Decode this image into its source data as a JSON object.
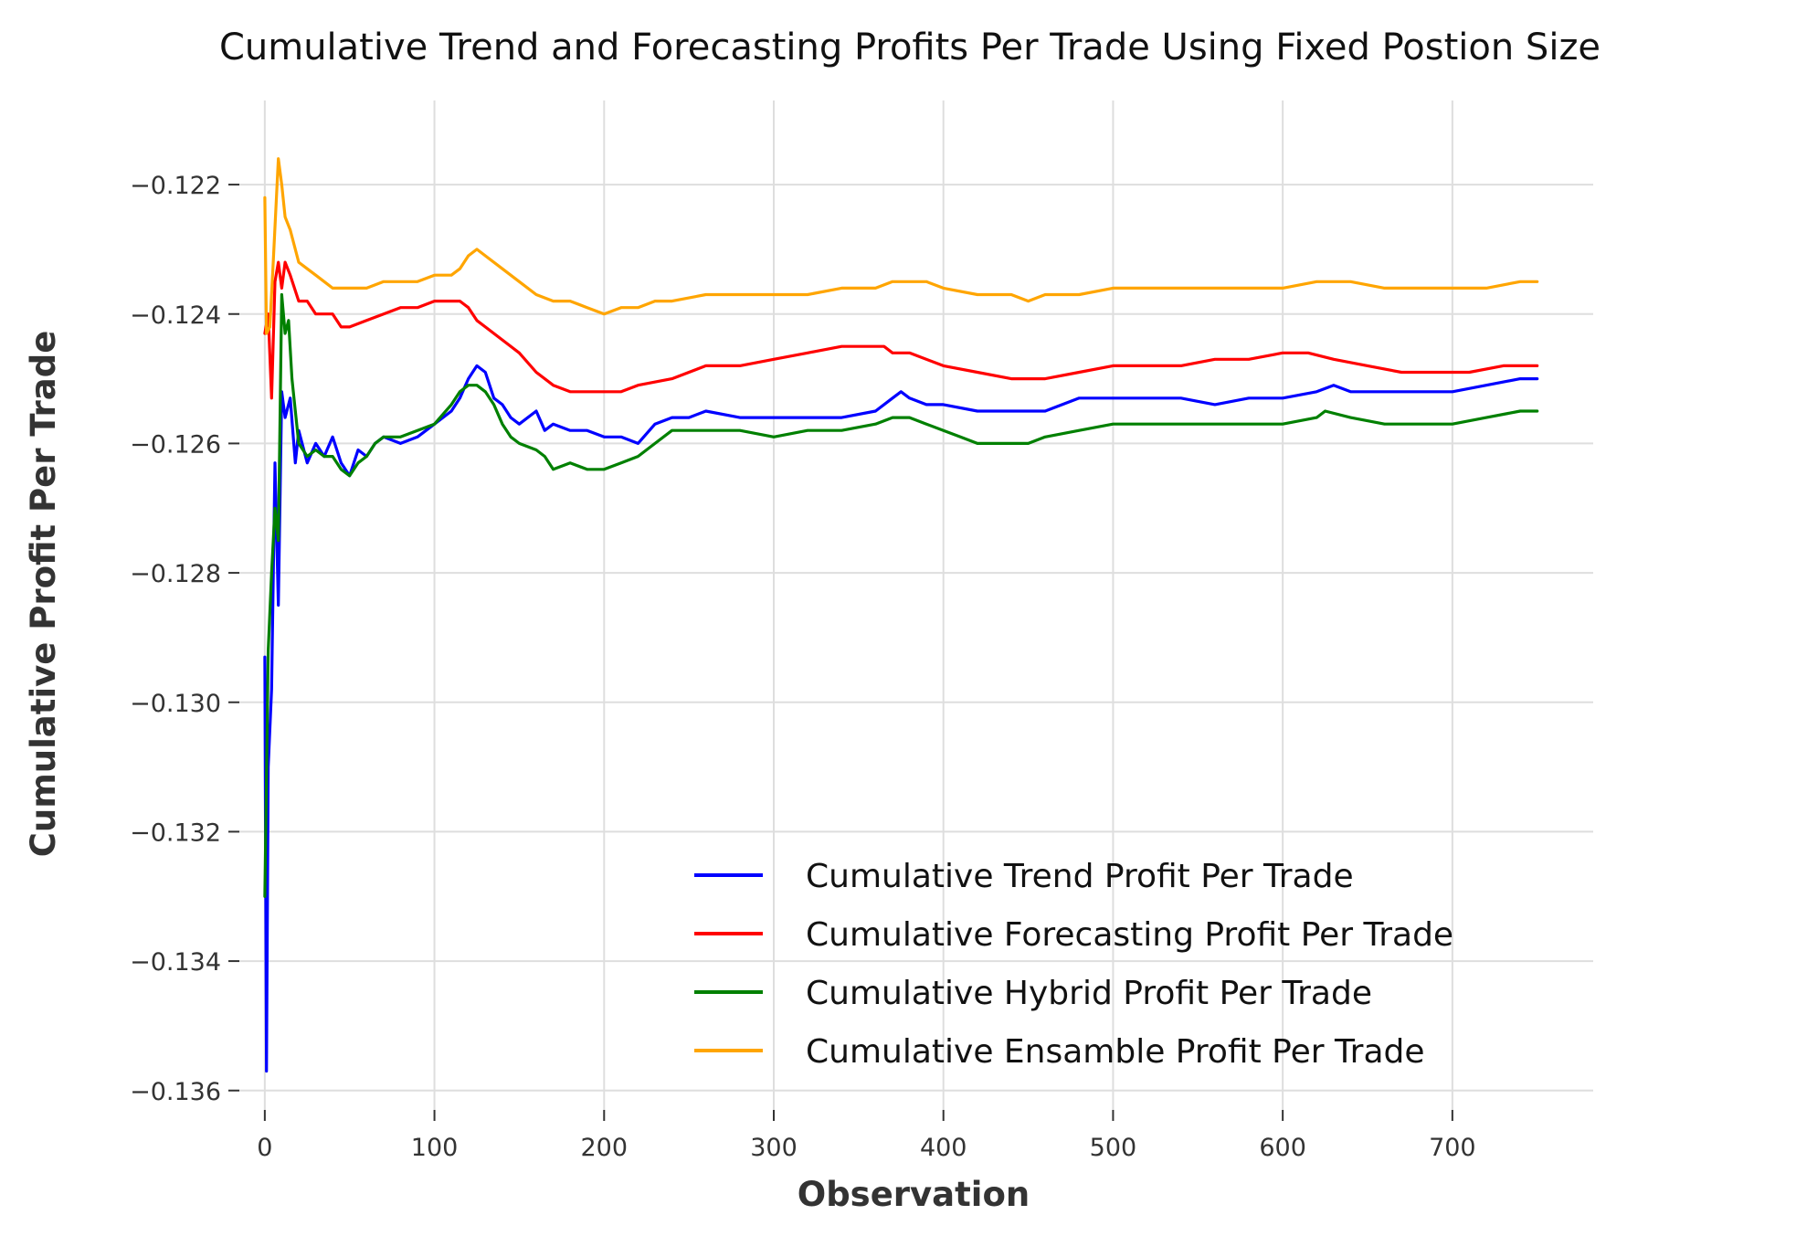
{
  "chart_data": {
    "type": "line",
    "title": "Cumulative Trend and Forecasting Profits Per Trade Using Fixed Postion Size",
    "xlabel": "Observation",
    "ylabel": "Cumulative Profit Per Trade",
    "xlim": [
      -15,
      783
    ],
    "ylim": [
      -0.1363,
      -0.1207
    ],
    "x_ticks": [
      0,
      100,
      200,
      300,
      400,
      500,
      600,
      700
    ],
    "x_tick_labels": [
      "0",
      "100",
      "200",
      "300",
      "400",
      "500",
      "600",
      "700"
    ],
    "y_ticks": [
      -0.122,
      -0.124,
      -0.126,
      -0.128,
      -0.13,
      -0.132,
      -0.134,
      -0.136
    ],
    "y_tick_labels": [
      "−0.122",
      "−0.124",
      "−0.126",
      "−0.128",
      "−0.130",
      "−0.132",
      "−0.134",
      "−0.136"
    ],
    "grid": true,
    "legend_position": "bottom-right",
    "series": [
      {
        "name": "Cumulative Trend Profit Per Trade",
        "color": "#0000ff",
        "points": [
          [
            0,
            -0.1293
          ],
          [
            1,
            -0.1357
          ],
          [
            2,
            -0.131
          ],
          [
            4,
            -0.1298
          ],
          [
            6,
            -0.1263
          ],
          [
            8,
            -0.1285
          ],
          [
            10,
            -0.1252
          ],
          [
            12,
            -0.1256
          ],
          [
            15,
            -0.1253
          ],
          [
            18,
            -0.1263
          ],
          [
            20,
            -0.1258
          ],
          [
            25,
            -0.1263
          ],
          [
            30,
            -0.126
          ],
          [
            35,
            -0.1262
          ],
          [
            40,
            -0.1259
          ],
          [
            45,
            -0.1263
          ],
          [
            50,
            -0.1265
          ],
          [
            55,
            -0.1261
          ],
          [
            60,
            -0.1262
          ],
          [
            65,
            -0.126
          ],
          [
            70,
            -0.1259
          ],
          [
            80,
            -0.126
          ],
          [
            90,
            -0.1259
          ],
          [
            100,
            -0.1257
          ],
          [
            110,
            -0.1255
          ],
          [
            115,
            -0.1253
          ],
          [
            120,
            -0.125
          ],
          [
            125,
            -0.1248
          ],
          [
            130,
            -0.1249
          ],
          [
            135,
            -0.1253
          ],
          [
            140,
            -0.1254
          ],
          [
            145,
            -0.1256
          ],
          [
            150,
            -0.1257
          ],
          [
            160,
            -0.1255
          ],
          [
            165,
            -0.1258
          ],
          [
            170,
            -0.1257
          ],
          [
            180,
            -0.1258
          ],
          [
            190,
            -0.1258
          ],
          [
            200,
            -0.1259
          ],
          [
            210,
            -0.1259
          ],
          [
            220,
            -0.126
          ],
          [
            230,
            -0.1257
          ],
          [
            240,
            -0.1256
          ],
          [
            250,
            -0.1256
          ],
          [
            260,
            -0.1255
          ],
          [
            280,
            -0.1256
          ],
          [
            300,
            -0.1256
          ],
          [
            320,
            -0.1256
          ],
          [
            340,
            -0.1256
          ],
          [
            360,
            -0.1255
          ],
          [
            370,
            -0.1253
          ],
          [
            375,
            -0.1252
          ],
          [
            380,
            -0.1253
          ],
          [
            390,
            -0.1254
          ],
          [
            400,
            -0.1254
          ],
          [
            420,
            -0.1255
          ],
          [
            440,
            -0.1255
          ],
          [
            460,
            -0.1255
          ],
          [
            480,
            -0.1253
          ],
          [
            500,
            -0.1253
          ],
          [
            520,
            -0.1253
          ],
          [
            540,
            -0.1253
          ],
          [
            560,
            -0.1254
          ],
          [
            580,
            -0.1253
          ],
          [
            600,
            -0.1253
          ],
          [
            620,
            -0.1252
          ],
          [
            630,
            -0.1251
          ],
          [
            640,
            -0.1252
          ],
          [
            660,
            -0.1252
          ],
          [
            680,
            -0.1252
          ],
          [
            700,
            -0.1252
          ],
          [
            720,
            -0.1251
          ],
          [
            740,
            -0.125
          ],
          [
            750,
            -0.125
          ]
        ]
      },
      {
        "name": "Cumulative Forecasting Profit Per Trade",
        "color": "#ff0000",
        "points": [
          [
            0,
            -0.1243
          ],
          [
            2,
            -0.124
          ],
          [
            4,
            -0.1253
          ],
          [
            6,
            -0.1235
          ],
          [
            8,
            -0.1232
          ],
          [
            10,
            -0.1236
          ],
          [
            12,
            -0.1232
          ],
          [
            15,
            -0.1234
          ],
          [
            20,
            -0.1238
          ],
          [
            25,
            -0.1238
          ],
          [
            30,
            -0.124
          ],
          [
            35,
            -0.124
          ],
          [
            40,
            -0.124
          ],
          [
            45,
            -0.1242
          ],
          [
            50,
            -0.1242
          ],
          [
            60,
            -0.1241
          ],
          [
            70,
            -0.124
          ],
          [
            80,
            -0.1239
          ],
          [
            90,
            -0.1239
          ],
          [
            100,
            -0.1238
          ],
          [
            110,
            -0.1238
          ],
          [
            115,
            -0.1238
          ],
          [
            120,
            -0.1239
          ],
          [
            125,
            -0.1241
          ],
          [
            130,
            -0.1242
          ],
          [
            140,
            -0.1244
          ],
          [
            150,
            -0.1246
          ],
          [
            160,
            -0.1249
          ],
          [
            170,
            -0.1251
          ],
          [
            180,
            -0.1252
          ],
          [
            190,
            -0.1252
          ],
          [
            200,
            -0.1252
          ],
          [
            210,
            -0.1252
          ],
          [
            220,
            -0.1251
          ],
          [
            240,
            -0.125
          ],
          [
            260,
            -0.1248
          ],
          [
            280,
            -0.1248
          ],
          [
            300,
            -0.1247
          ],
          [
            320,
            -0.1246
          ],
          [
            340,
            -0.1245
          ],
          [
            360,
            -0.1245
          ],
          [
            365,
            -0.1245
          ],
          [
            370,
            -0.1246
          ],
          [
            380,
            -0.1246
          ],
          [
            400,
            -0.1248
          ],
          [
            420,
            -0.1249
          ],
          [
            440,
            -0.125
          ],
          [
            460,
            -0.125
          ],
          [
            480,
            -0.1249
          ],
          [
            500,
            -0.1248
          ],
          [
            520,
            -0.1248
          ],
          [
            540,
            -0.1248
          ],
          [
            560,
            -0.1247
          ],
          [
            580,
            -0.1247
          ],
          [
            600,
            -0.1246
          ],
          [
            615,
            -0.1246
          ],
          [
            630,
            -0.1247
          ],
          [
            650,
            -0.1248
          ],
          [
            670,
            -0.1249
          ],
          [
            690,
            -0.1249
          ],
          [
            710,
            -0.1249
          ],
          [
            730,
            -0.1248
          ],
          [
            750,
            -0.1248
          ]
        ]
      },
      {
        "name": "Cumulative Hybrid Profit Per Trade",
        "color": "#008000",
        "points": [
          [
            0,
            -0.133
          ],
          [
            2,
            -0.1292
          ],
          [
            4,
            -0.128
          ],
          [
            6,
            -0.127
          ],
          [
            8,
            -0.1275
          ],
          [
            10,
            -0.1237
          ],
          [
            12,
            -0.1243
          ],
          [
            14,
            -0.1241
          ],
          [
            16,
            -0.125
          ],
          [
            18,
            -0.1255
          ],
          [
            20,
            -0.126
          ],
          [
            25,
            -0.1262
          ],
          [
            30,
            -0.1261
          ],
          [
            35,
            -0.1262
          ],
          [
            40,
            -0.1262
          ],
          [
            45,
            -0.1264
          ],
          [
            50,
            -0.1265
          ],
          [
            55,
            -0.1263
          ],
          [
            60,
            -0.1262
          ],
          [
            65,
            -0.126
          ],
          [
            70,
            -0.1259
          ],
          [
            80,
            -0.1259
          ],
          [
            90,
            -0.1258
          ],
          [
            100,
            -0.1257
          ],
          [
            110,
            -0.1254
          ],
          [
            115,
            -0.1252
          ],
          [
            120,
            -0.1251
          ],
          [
            125,
            -0.1251
          ],
          [
            130,
            -0.1252
          ],
          [
            135,
            -0.1254
          ],
          [
            140,
            -0.1257
          ],
          [
            145,
            -0.1259
          ],
          [
            150,
            -0.126
          ],
          [
            160,
            -0.1261
          ],
          [
            165,
            -0.1262
          ],
          [
            170,
            -0.1264
          ],
          [
            180,
            -0.1263
          ],
          [
            190,
            -0.1264
          ],
          [
            200,
            -0.1264
          ],
          [
            210,
            -0.1263
          ],
          [
            220,
            -0.1262
          ],
          [
            230,
            -0.126
          ],
          [
            240,
            -0.1258
          ],
          [
            250,
            -0.1258
          ],
          [
            260,
            -0.1258
          ],
          [
            280,
            -0.1258
          ],
          [
            300,
            -0.1259
          ],
          [
            320,
            -0.1258
          ],
          [
            340,
            -0.1258
          ],
          [
            360,
            -0.1257
          ],
          [
            370,
            -0.1256
          ],
          [
            380,
            -0.1256
          ],
          [
            390,
            -0.1257
          ],
          [
            400,
            -0.1258
          ],
          [
            410,
            -0.1259
          ],
          [
            420,
            -0.126
          ],
          [
            440,
            -0.126
          ],
          [
            450,
            -0.126
          ],
          [
            460,
            -0.1259
          ],
          [
            480,
            -0.1258
          ],
          [
            500,
            -0.1257
          ],
          [
            520,
            -0.1257
          ],
          [
            540,
            -0.1257
          ],
          [
            560,
            -0.1257
          ],
          [
            580,
            -0.1257
          ],
          [
            600,
            -0.1257
          ],
          [
            620,
            -0.1256
          ],
          [
            625,
            -0.1255
          ],
          [
            640,
            -0.1256
          ],
          [
            660,
            -0.1257
          ],
          [
            680,
            -0.1257
          ],
          [
            700,
            -0.1257
          ],
          [
            720,
            -0.1256
          ],
          [
            740,
            -0.1255
          ],
          [
            750,
            -0.1255
          ]
        ]
      },
      {
        "name": "Cumulative Ensamble Profit Per Trade",
        "color": "#ffa500",
        "points": [
          [
            0,
            -0.1222
          ],
          [
            1,
            -0.1243
          ],
          [
            3,
            -0.1242
          ],
          [
            5,
            -0.1232
          ],
          [
            8,
            -0.1216
          ],
          [
            10,
            -0.122
          ],
          [
            12,
            -0.1225
          ],
          [
            15,
            -0.1227
          ],
          [
            20,
            -0.1232
          ],
          [
            25,
            -0.1233
          ],
          [
            30,
            -0.1234
          ],
          [
            35,
            -0.1235
          ],
          [
            40,
            -0.1236
          ],
          [
            45,
            -0.1236
          ],
          [
            50,
            -0.1236
          ],
          [
            60,
            -0.1236
          ],
          [
            70,
            -0.1235
          ],
          [
            80,
            -0.1235
          ],
          [
            90,
            -0.1235
          ],
          [
            100,
            -0.1234
          ],
          [
            110,
            -0.1234
          ],
          [
            115,
            -0.1233
          ],
          [
            120,
            -0.1231
          ],
          [
            125,
            -0.123
          ],
          [
            130,
            -0.1231
          ],
          [
            140,
            -0.1233
          ],
          [
            150,
            -0.1235
          ],
          [
            160,
            -0.1237
          ],
          [
            170,
            -0.1238
          ],
          [
            180,
            -0.1238
          ],
          [
            190,
            -0.1239
          ],
          [
            200,
            -0.124
          ],
          [
            210,
            -0.1239
          ],
          [
            220,
            -0.1239
          ],
          [
            230,
            -0.1238
          ],
          [
            240,
            -0.1238
          ],
          [
            260,
            -0.1237
          ],
          [
            280,
            -0.1237
          ],
          [
            300,
            -0.1237
          ],
          [
            320,
            -0.1237
          ],
          [
            340,
            -0.1236
          ],
          [
            360,
            -0.1236
          ],
          [
            370,
            -0.1235
          ],
          [
            375,
            -0.1235
          ],
          [
            380,
            -0.1235
          ],
          [
            390,
            -0.1235
          ],
          [
            400,
            -0.1236
          ],
          [
            420,
            -0.1237
          ],
          [
            440,
            -0.1237
          ],
          [
            450,
            -0.1238
          ],
          [
            460,
            -0.1237
          ],
          [
            480,
            -0.1237
          ],
          [
            500,
            -0.1236
          ],
          [
            520,
            -0.1236
          ],
          [
            540,
            -0.1236
          ],
          [
            560,
            -0.1236
          ],
          [
            580,
            -0.1236
          ],
          [
            600,
            -0.1236
          ],
          [
            620,
            -0.1235
          ],
          [
            625,
            -0.1235
          ],
          [
            640,
            -0.1235
          ],
          [
            660,
            -0.1236
          ],
          [
            680,
            -0.1236
          ],
          [
            700,
            -0.1236
          ],
          [
            720,
            -0.1236
          ],
          [
            740,
            -0.1235
          ],
          [
            750,
            -0.1235
          ]
        ]
      }
    ]
  }
}
